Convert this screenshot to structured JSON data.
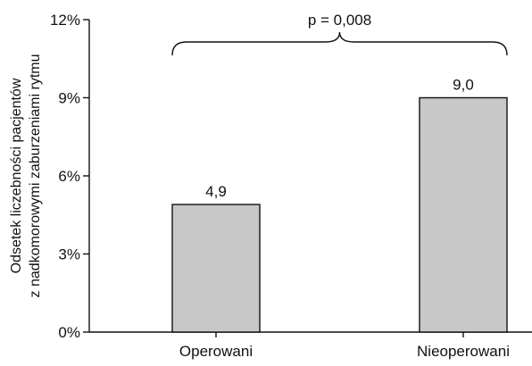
{
  "chart_data": {
    "type": "bar",
    "categories": [
      "Operowani",
      "Nieoperowani"
    ],
    "values": [
      4.9,
      9.0
    ],
    "value_labels": [
      "4,9",
      "9,0"
    ],
    "title": "",
    "xlabel": "",
    "ylabel_lines": [
      "Odsetek liczebności pacjentów",
      "z nadkomorowymi zaburzeniami rytmu"
    ],
    "ylim": [
      0,
      12
    ],
    "yticks": [
      0,
      3,
      6,
      9,
      12
    ],
    "ytick_labels": [
      "0%",
      "3%",
      "6%",
      "9%",
      "12%"
    ],
    "grid": false,
    "legend": "none",
    "annotation": {
      "text": "p = 0,008",
      "type": "brace",
      "spans": [
        "Operowani",
        "Nieoperowani"
      ]
    },
    "colors": {
      "bar_fill": "#c8c8c8",
      "bar_stroke": "#111111",
      "axis": "#111111"
    }
  }
}
